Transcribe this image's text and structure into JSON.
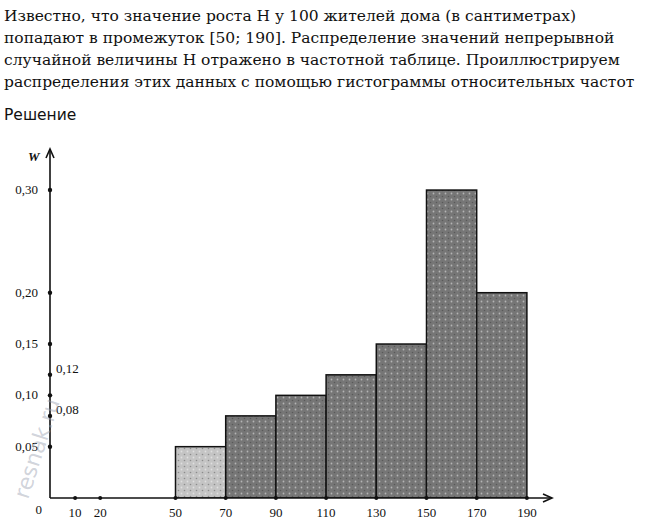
{
  "problem": {
    "lines": [
      "Известно, что значение роста Н у 100 жителей дома (в сантиметрах)",
      "попадают в промежуток [50; 190]. Распределение значений непрерывной",
      "случайной величины Н отражено в частотной таблице. Проиллюстрируем",
      "распределения этих данных с помощью гистограммы относительных частот"
    ],
    "heading": "Решение",
    "watermark": "resnak.ru"
  },
  "chart_data": {
    "type": "histogram",
    "y_label": "W",
    "bins": [
      50,
      70,
      90,
      110,
      130,
      150,
      170,
      190
    ],
    "values": [
      0.05,
      0.08,
      0.1,
      0.12,
      0.15,
      0.3,
      0.2
    ],
    "colors": [
      "#c4c4c4",
      "#767676",
      "#767676",
      "#767676",
      "#767676",
      "#767676",
      "#767676"
    ],
    "xlim": [
      0,
      200
    ],
    "ylim": [
      0,
      0.34
    ],
    "xticks": [
      10,
      20,
      50,
      70,
      90,
      110,
      130,
      150,
      170,
      190
    ],
    "yticks": [
      {
        "value": 0,
        "label": "0"
      },
      {
        "value": 0.05,
        "label": "0,05"
      },
      {
        "value": 0.08,
        "label": "0,08"
      },
      {
        "value": 0.1,
        "label": "0,10"
      },
      {
        "value": 0.12,
        "label": "0,12"
      },
      {
        "value": 0.15,
        "label": "0,15"
      },
      {
        "value": 0.2,
        "label": "0,20"
      },
      {
        "value": 0.3,
        "label": "0,30"
      }
    ],
    "grid": false
  }
}
